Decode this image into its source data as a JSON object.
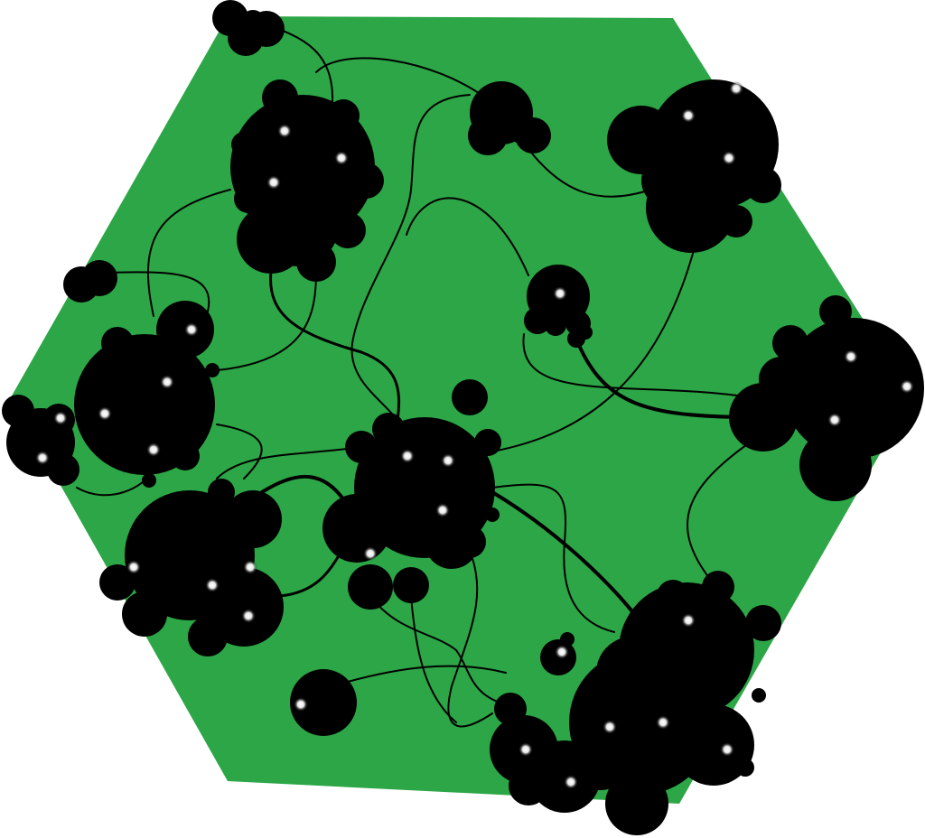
{
  "board": {
    "terrain": "hexagon-map",
    "field_color": "#2ca646",
    "cluster_color": "#000000",
    "node_color": "#ffffff"
  }
}
